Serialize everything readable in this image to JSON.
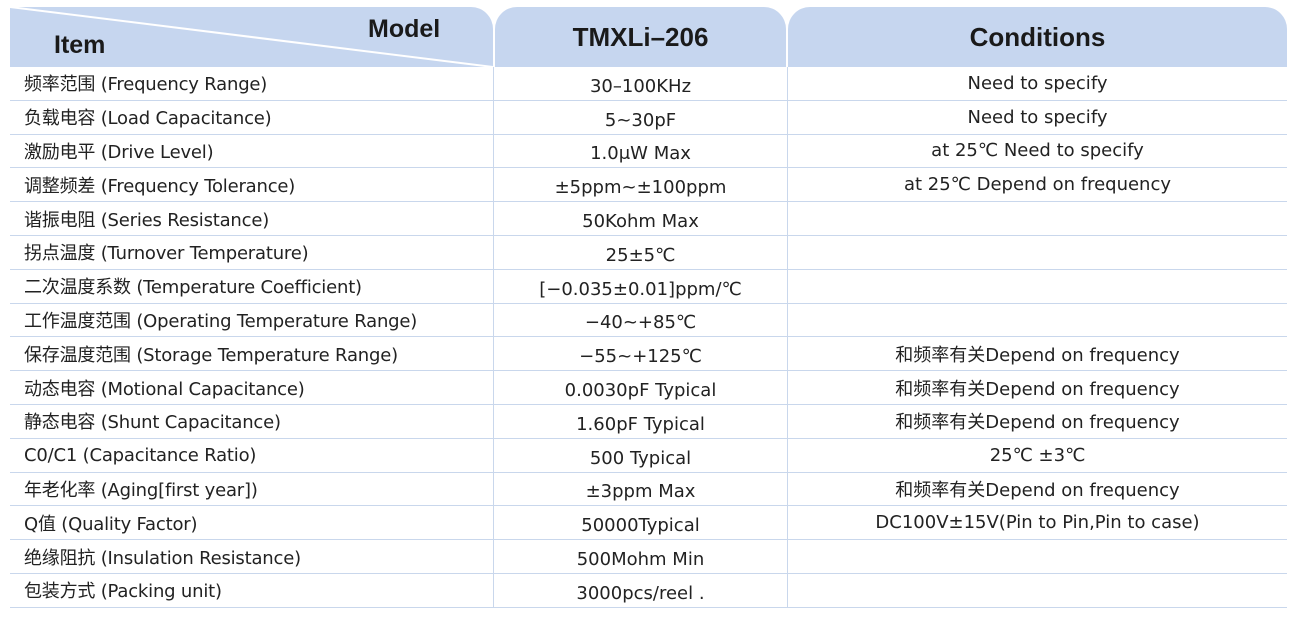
{
  "table": {
    "header": {
      "item": "Item",
      "model": "Model",
      "product": "TMXLi–206",
      "conditions": "Conditions"
    },
    "rows": [
      [
        "频率范围 (Frequency Range)",
        "30–100KHz",
        "Need to specify"
      ],
      [
        "负载电容 (Load Capacitance)",
        "5~30pF",
        "Need to specify"
      ],
      [
        "激励电平 (Drive Level)",
        "1.0μW Max",
        "at 25℃ Need to specify"
      ],
      [
        "调整频差 (Frequency Tolerance)",
        "±5ppm~±100ppm",
        "at 25℃ Depend on frequency"
      ],
      [
        "谐振电阻 (Series Resistance)",
        "50Kohm Max"
      ],
      [
        "拐点温度 (Turnover Temperature)",
        "25±5℃"
      ],
      [
        "二次温度系数 (Temperature Coefficient)",
        "[−0.035±0.01]ppm/℃"
      ],
      [
        "工作温度范围 (Operating Temperature Range)",
        "−40~+85℃"
      ],
      [
        "保存温度范围 (Storage Temperature Range)",
        "−55~+125℃",
        "和频率有关Depend on frequency"
      ],
      [
        "动态电容 (Motional Capacitance)",
        "0.0030pF Typical",
        "和频率有关Depend on frequency"
      ],
      [
        "静态电容 (Shunt Capacitance)",
        "1.60pF Typical",
        "和频率有关Depend on frequency"
      ],
      [
        "C0/C1 (Capacitance Ratio)",
        "500 Typical",
        "25℃  ±3℃"
      ],
      [
        "年老化率 (Aging[first year])",
        "±3ppm Max",
        "和频率有关Depend on frequency"
      ],
      [
        "Q值 (Quality Factor)",
        "50000Typical",
        "DC100V±15V(Pin to Pin,Pin to case)"
      ],
      [
        "绝缘阻抗 (Insulation Resistance)",
        "500Mohm Min"
      ],
      [
        "包装方式 (Packing unit)",
        "3000pcs/reel ."
      ]
    ]
  }
}
